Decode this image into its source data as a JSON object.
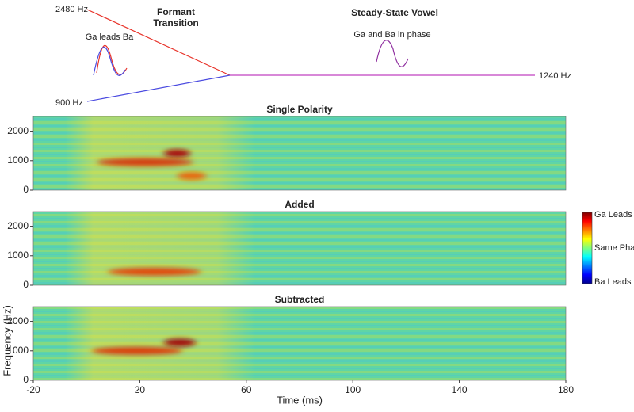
{
  "diagram": {
    "labels": {
      "formant": "Formant\nTransition",
      "steady": "Steady-State Vowel",
      "ga_leads": "Ga leads Ba",
      "in_phase": "Ga and Ba in phase",
      "f_high": "2480 Hz",
      "f_low": "900 Hz",
      "f_end": "1240 Hz"
    }
  },
  "colorbar": {
    "labels": [
      "Ga Leads",
      "Same Phase",
      "Ba Leads"
    ]
  },
  "chart_data": [
    {
      "type": "heatmap",
      "title": "Single Polarity",
      "xlim": [
        -20,
        180
      ],
      "ylim": [
        0,
        2500
      ],
      "yticks": [
        0,
        1000,
        2000
      ],
      "hotspots": [
        {
          "x": [
            4,
            40
          ],
          "y": 950,
          "color": "#d63a10"
        },
        {
          "x": [
            29,
            39
          ],
          "y": 1250,
          "color": "#a81010"
        },
        {
          "x": [
            34,
            45
          ],
          "y": 480,
          "color": "#e86a10"
        }
      ]
    },
    {
      "type": "heatmap",
      "title": "Added",
      "xlim": [
        -20,
        180
      ],
      "ylim": [
        0,
        2500
      ],
      "yticks": [
        0,
        1000,
        2000
      ],
      "hotspots": [
        {
          "x": [
            8,
            43
          ],
          "y": 460,
          "color": "#e04a10"
        }
      ]
    },
    {
      "type": "heatmap",
      "title": "Subtracted",
      "xlim": [
        -20,
        180
      ],
      "ylim": [
        0,
        2500
      ],
      "yticks": [
        0,
        1000,
        2000
      ],
      "xticks": [
        -20,
        20,
        60,
        100,
        140,
        180
      ],
      "xlabel": "Time (ms)",
      "ylabel": "Frequency (Hz)",
      "hotspots": [
        {
          "x": [
            2,
            36
          ],
          "y": 1000,
          "color": "#d84010"
        },
        {
          "x": [
            29,
            41
          ],
          "y": 1280,
          "color": "#a01010"
        }
      ]
    }
  ]
}
